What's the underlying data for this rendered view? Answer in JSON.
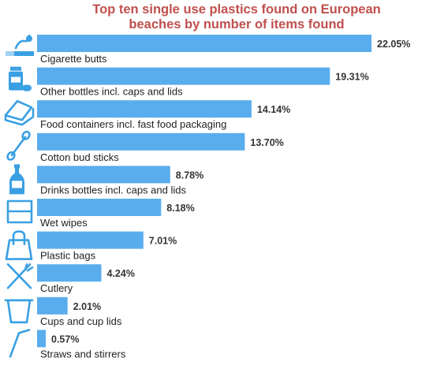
{
  "chart_data": {
    "type": "bar",
    "orientation": "horizontal",
    "title": [
      "Top ten single use plastics found on European",
      "beaches by number of items found"
    ],
    "categories": [
      "Cigarette butts",
      "Other bottles incl. caps and lids",
      "Food containers incl. fast food packaging",
      "Cotton bud sticks",
      "Drinks bottles incl. caps and lids",
      "Wet wipes",
      "Plastic bags",
      "Cutlery",
      "Cups and cup lids",
      "Straws and stirrers"
    ],
    "values": [
      22.05,
      19.31,
      14.14,
      13.7,
      8.78,
      8.18,
      7.01,
      4.24,
      2.01,
      0.57
    ],
    "value_labels": [
      "22.05%",
      "19.31%",
      "14.14%",
      "13.70%",
      "8.78%",
      "8.18%",
      "7.01%",
      "4.24%",
      "2.01%",
      "0.57%"
    ],
    "icons": [
      "cigarette-icon",
      "medicine-bottle-icon",
      "food-container-icon",
      "cotton-bud-icon",
      "drink-bottle-icon",
      "wet-wipes-icon",
      "plastic-bag-icon",
      "cutlery-icon",
      "cup-icon",
      "straw-icon"
    ],
    "xlim": [
      0,
      22.05
    ],
    "grid": false,
    "legend": "none",
    "colors": {
      "bar": "#5aadec",
      "icon": "#3aa0e3",
      "title": "#c0504d",
      "text": "#222222",
      "value": "#333333"
    }
  }
}
